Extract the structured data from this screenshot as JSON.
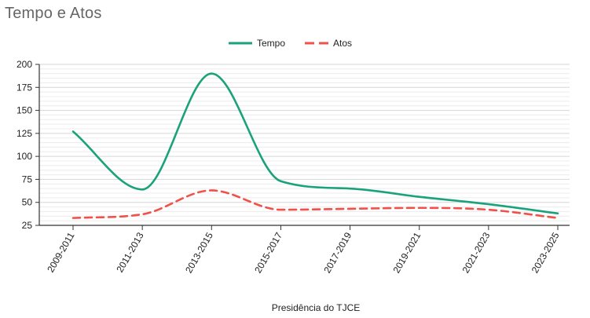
{
  "chart_data": {
    "type": "line",
    "title": "Tempo e Atos",
    "xlabel": "Presidência do TJCE",
    "ylabel": "",
    "categories": [
      "2009-2011",
      "2011-2013",
      "2013-2015",
      "2015-2017",
      "2017-2019",
      "2019-2021",
      "2021-2023",
      "2023-2025"
    ],
    "series": [
      {
        "name": "Tempo",
        "color": "#1aa37a",
        "style": "solid",
        "values": [
          127,
          64,
          190,
          73,
          65,
          56,
          48,
          38
        ]
      },
      {
        "name": "Atos",
        "color": "#f0514a",
        "style": "dashed",
        "values": [
          33,
          37,
          63,
          42,
          43,
          44,
          42,
          33
        ]
      }
    ],
    "ylim": [
      25,
      200
    ],
    "yticks": [
      25,
      50,
      75,
      100,
      125,
      150,
      175,
      200
    ],
    "minor_grid_step": 5,
    "grid": true,
    "legend_position": "top-center"
  }
}
